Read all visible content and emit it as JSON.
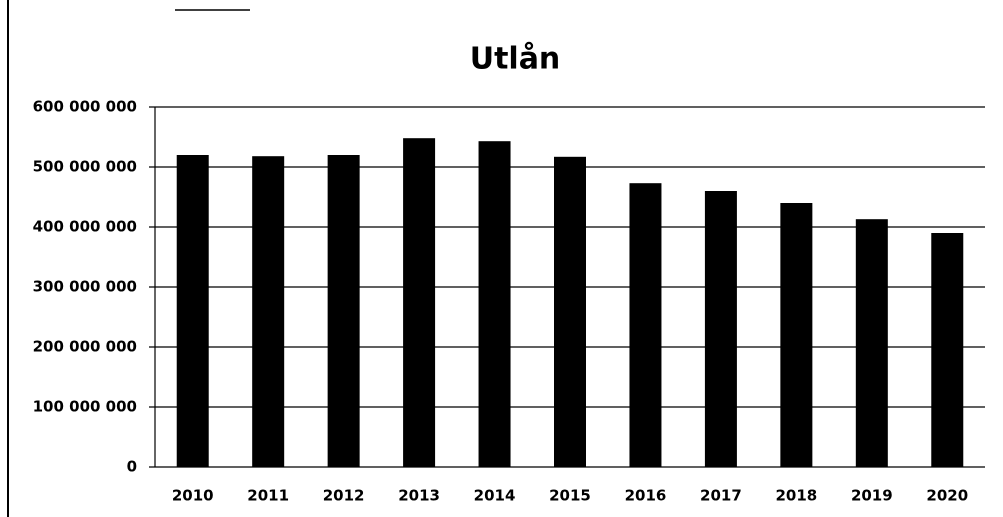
{
  "chart_data": {
    "type": "bar",
    "title": "Utlån",
    "categories": [
      "2010",
      "2011",
      "2012",
      "2013",
      "2014",
      "2015",
      "2016",
      "2017",
      "2018",
      "2019",
      "2020"
    ],
    "values": [
      520000000,
      518000000,
      520000000,
      548000000,
      543000000,
      517000000,
      473000000,
      460000000,
      440000000,
      413000000,
      390000000
    ],
    "color": "#000000",
    "ylim": [
      0,
      600000000
    ],
    "yticks": [
      0,
      {
        "value": 100000000,
        "label": "100 000 000"
      },
      {
        "value": 200000000,
        "label": "200 000 000"
      },
      {
        "value": 300000000,
        "label": "300 000 000"
      },
      {
        "value": 400000000,
        "label": "400 000 000"
      },
      {
        "value": 500000000,
        "label": "500 000 000"
      },
      {
        "value": 600000000,
        "label": "600 000 000"
      }
    ],
    "grid": true
  }
}
